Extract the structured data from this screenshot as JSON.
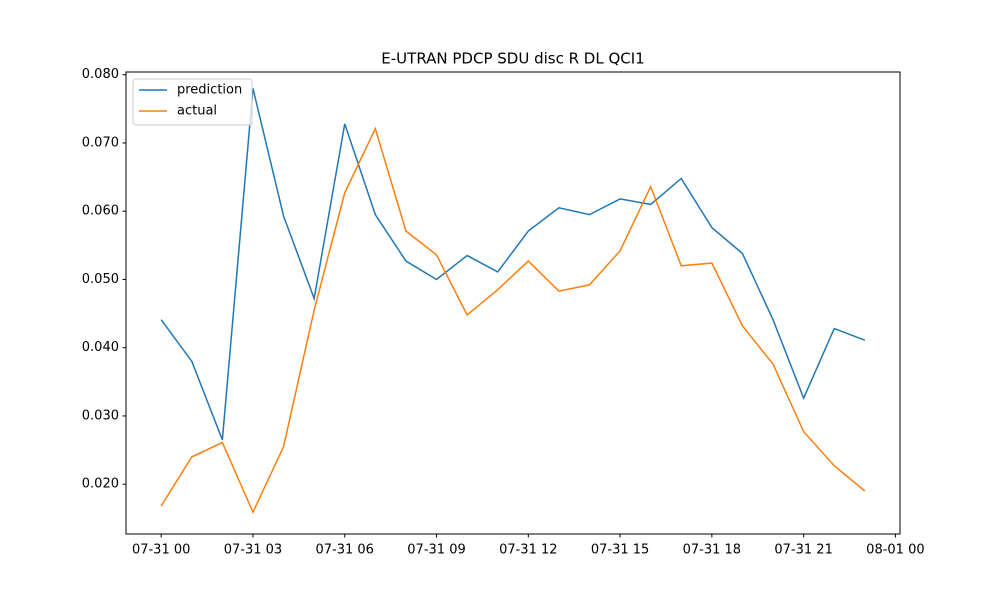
{
  "chart_data": {
    "type": "line",
    "title": "E-UTRAN PDCP SDU disc R DL QCI1",
    "x": [
      "07-31 00",
      "07-31 01",
      "07-31 02",
      "07-31 03",
      "07-31 04",
      "07-31 05",
      "07-31 06",
      "07-31 07",
      "07-31 08",
      "07-31 09",
      "07-31 10",
      "07-31 11",
      "07-31 12",
      "07-31 13",
      "07-31 14",
      "07-31 15",
      "07-31 16",
      "07-31 17",
      "07-31 18",
      "07-31 19",
      "07-31 20",
      "07-31 21",
      "07-31 22",
      "07-31 23"
    ],
    "series": [
      {
        "name": "prediction",
        "color": "#1f77b4",
        "values": [
          0.0441,
          0.038,
          0.0265,
          0.078,
          0.0593,
          0.0472,
          0.0728,
          0.0595,
          0.0527,
          0.05,
          0.0535,
          0.0511,
          0.0571,
          0.0605,
          0.0595,
          0.0618,
          0.061,
          0.0648,
          0.0576,
          0.0538,
          0.0441,
          0.0326,
          0.0428,
          0.0411
        ]
      },
      {
        "name": "actual",
        "color": "#ff7f0e",
        "values": [
          0.0168,
          0.024,
          0.0261,
          0.0159,
          0.0255,
          0.0455,
          0.0627,
          0.0721,
          0.0571,
          0.0536,
          0.0448,
          0.0485,
          0.0527,
          0.0483,
          0.0492,
          0.0542,
          0.0636,
          0.052,
          0.0524,
          0.0432,
          0.0376,
          0.0277,
          0.0227,
          0.019
        ]
      }
    ],
    "xticks": [
      "07-31 00",
      "07-31 03",
      "07-31 06",
      "07-31 09",
      "07-31 12",
      "07-31 15",
      "07-31 18",
      "07-31 21",
      "08-01 00"
    ],
    "ylim": [
      0.0127,
      0.0804
    ],
    "yticks": [
      {
        "value": 0.02,
        "label": "0.020"
      },
      {
        "value": 0.03,
        "label": "0.030"
      },
      {
        "value": 0.04,
        "label": "0.040"
      },
      {
        "value": 0.05,
        "label": "0.050"
      },
      {
        "value": 0.06,
        "label": "0.060"
      },
      {
        "value": 0.07,
        "label": "0.070"
      },
      {
        "value": 0.08,
        "label": "0.080"
      }
    ],
    "legend": "upper left"
  }
}
